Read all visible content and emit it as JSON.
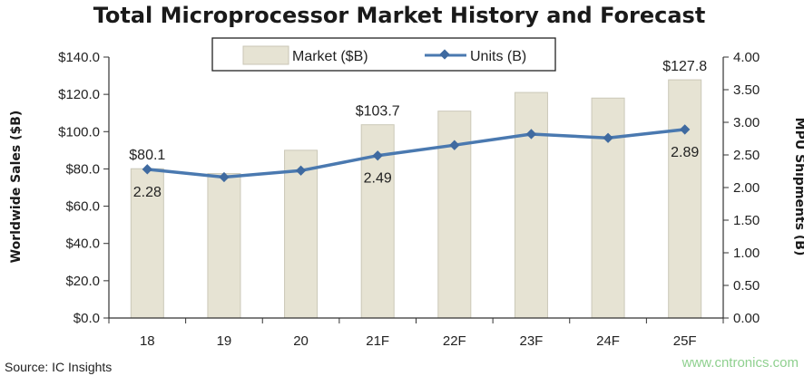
{
  "chart_data": {
    "type": "bar",
    "title": "Total Microprocessor Market History and Forecast",
    "categories": [
      "18",
      "19",
      "20",
      "21F",
      "22F",
      "23F",
      "24F",
      "25F"
    ],
    "series": [
      {
        "name": "Market ($B)",
        "type": "bar",
        "axis": "left",
        "color": "#e6e3d3",
        "values": [
          80.1,
          77.5,
          90.0,
          103.7,
          111.0,
          121.0,
          118.0,
          127.8
        ]
      },
      {
        "name": "Units (B)",
        "type": "line",
        "axis": "right",
        "color": "#4a79b0",
        "values": [
          2.28,
          2.16,
          2.26,
          2.49,
          2.65,
          2.82,
          2.76,
          2.89
        ]
      }
    ],
    "bar_labels": [
      {
        "index": 0,
        "text": "$80.1"
      },
      {
        "index": 3,
        "text": "$103.7"
      },
      {
        "index": 7,
        "text": "$127.8"
      }
    ],
    "line_labels": [
      {
        "index": 0,
        "text": "2.28"
      },
      {
        "index": 3,
        "text": "2.49"
      },
      {
        "index": 7,
        "text": "2.89"
      }
    ],
    "ylabel": "Worldwide Sales ($B)",
    "ylim": [
      0,
      140
    ],
    "y_ticks": [
      "$0.0",
      "$20.0",
      "$40.0",
      "$60.0",
      "$80.0",
      "$100.0",
      "$120.0",
      "$140.0"
    ],
    "y2label": "MPU Shipments (B)",
    "y2lim": [
      0,
      4
    ],
    "y2_ticks": [
      "0.00",
      "0.50",
      "1.00",
      "1.50",
      "2.00",
      "2.50",
      "3.00",
      "3.50",
      "4.00"
    ],
    "legend_position": "top-center",
    "grid": false
  },
  "source": "Source:  IC Insights",
  "watermark": "www.cntronics.com"
}
